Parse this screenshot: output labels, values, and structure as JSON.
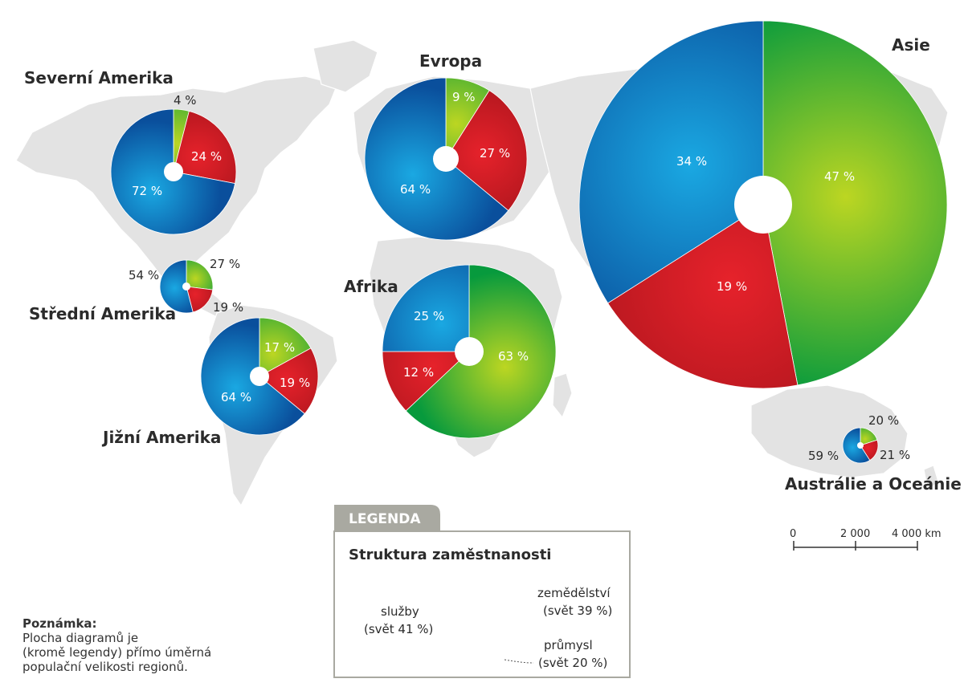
{
  "colors": {
    "services": "#0a5ca8",
    "industry": "#c4161c",
    "agriculture": "#17963a",
    "land": "#e3e3e3",
    "legend_tab": "#a9a9a1"
  },
  "regions": [
    {
      "id": "severni-amerika",
      "name": "Severní Amerika",
      "sluzby": "72 %",
      "prumysl": "24 %",
      "zemedelstvi": "4 %",
      "shares": {
        "services": 72,
        "industry": 24,
        "agriculture": 4
      }
    },
    {
      "id": "stredni-amerika",
      "name": "Střední Amerika",
      "sluzby": "54 %",
      "prumysl": "19 %",
      "zemedelstvi": "27 %",
      "shares": {
        "services": 54,
        "industry": 19,
        "agriculture": 27
      }
    },
    {
      "id": "jizni-amerika",
      "name": "Jižní Amerika",
      "sluzby": "64 %",
      "prumysl": "19 %",
      "zemedelstvi": "17 %",
      "shares": {
        "services": 64,
        "industry": 19,
        "agriculture": 17
      }
    },
    {
      "id": "evropa",
      "name": "Evropa",
      "sluzby": "64 %",
      "prumysl": "27 %",
      "zemedelstvi": "9 %",
      "shares": {
        "services": 64,
        "industry": 27,
        "agriculture": 9
      }
    },
    {
      "id": "afrika",
      "name": "Afrika",
      "sluzby": "25 %",
      "prumysl": "12 %",
      "zemedelstvi": "63 %",
      "shares": {
        "services": 25,
        "industry": 12,
        "agriculture": 63
      }
    },
    {
      "id": "asie",
      "name": "Asie",
      "sluzby": "34 %",
      "prumysl": "19 %",
      "zemedelstvi": "47 %",
      "shares": {
        "services": 34,
        "industry": 19,
        "agriculture": 47
      }
    },
    {
      "id": "australie",
      "name": "Austrálie a Oceánie",
      "sluzby": "59 %",
      "prumysl": "21 %",
      "zemedelstvi": "20 %",
      "shares": {
        "services": 59,
        "industry": 21,
        "agriculture": 20
      }
    }
  ],
  "legend": {
    "tab": "LEGENDA",
    "title": "Struktura zaměstnanosti",
    "services_label": "služby",
    "services_world": "(svět 41 %)",
    "agriculture_label": "zemědělství",
    "agriculture_world": "(svět 39 %)",
    "industry_label": "průmysl",
    "industry_world": "(svět 20 %)",
    "shares": {
      "services": 41,
      "industry": 20,
      "agriculture": 39
    }
  },
  "scale": {
    "t0": "0",
    "t1": "2 000",
    "t2": "4 000 km"
  },
  "note": {
    "title": "Poznámka:",
    "line1": "Plocha diagramů je",
    "line2": "(kromě legendy) přímo úměrná",
    "line3": "populační velikosti regionů."
  }
}
